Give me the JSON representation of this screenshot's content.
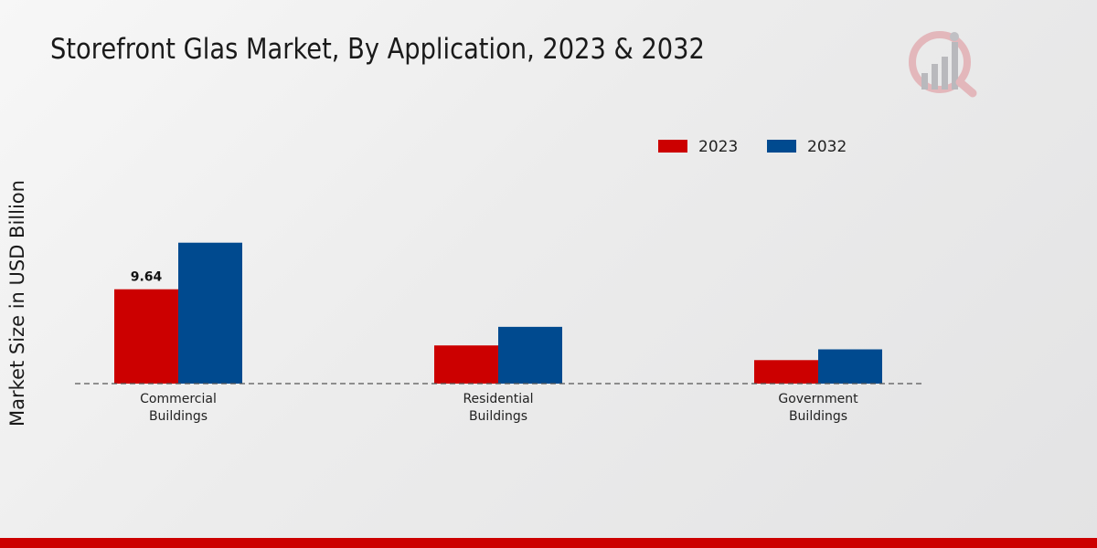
{
  "chart_data": {
    "type": "bar",
    "title": "Storefront Glas Market, By Application, 2023 & 2032",
    "xlabel": "",
    "ylabel": "Market Size in USD Billion",
    "categories": [
      "Commercial Buildings",
      "Residential Buildings",
      "Government Buildings"
    ],
    "category_lines": [
      [
        "Commercial",
        "Buildings"
      ],
      [
        "Residential",
        "Buildings"
      ],
      [
        "Government",
        "Buildings"
      ]
    ],
    "series": [
      {
        "name": "2023",
        "color": "#cc0000",
        "values": [
          9.64,
          3.9,
          2.4
        ]
      },
      {
        "name": "2032",
        "color": "#004a8f",
        "values": [
          14.4,
          5.8,
          3.5
        ]
      }
    ],
    "data_labels": [
      {
        "series": "2023",
        "category": "Commercial Buildings",
        "text": "9.64"
      }
    ],
    "ylim": [
      0,
      28
    ],
    "grid": false,
    "legend_position": "top-right"
  },
  "colors": {
    "accent": "#cc0000",
    "secondary": "#004a8f",
    "logo": "#d9a7ac"
  },
  "logo": {
    "icon": "bar-chart-magnifier-icon"
  }
}
